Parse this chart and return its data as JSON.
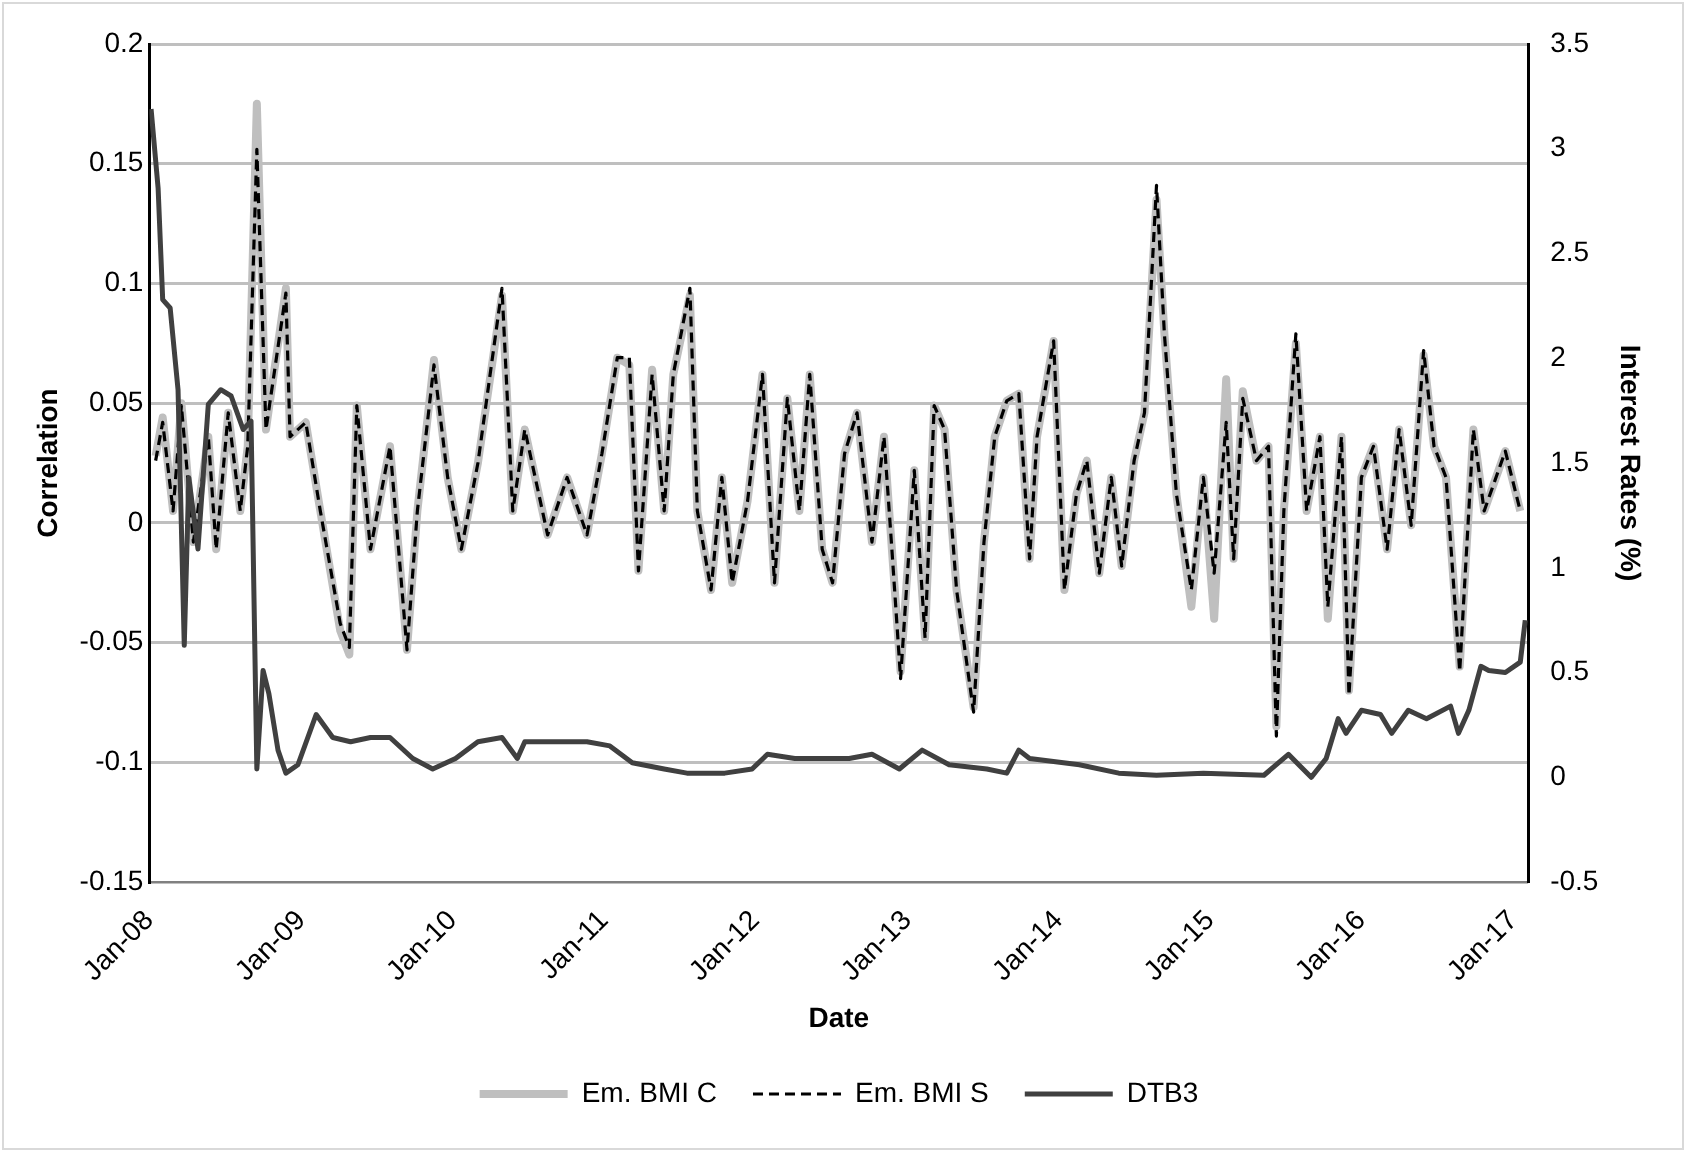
{
  "chart_data": {
    "type": "line",
    "xlabel": "Date",
    "ylabel": "Correlation",
    "y2label": "Interest Rates (%)",
    "xlim": [
      "2008-01-01",
      "2017-02-06"
    ],
    "xticks": [
      {
        "value": "2008-01",
        "label": "Jan-08"
      },
      {
        "value": "2009-01",
        "label": "Jan-09"
      },
      {
        "value": "2010-01",
        "label": "Jan-10"
      },
      {
        "value": "2011-01",
        "label": "Jan-11"
      },
      {
        "value": "2012-01",
        "label": "Jan-12"
      },
      {
        "value": "2013-01",
        "label": "Jan-13"
      },
      {
        "value": "2014-01",
        "label": "Jan-14"
      },
      {
        "value": "2015-01",
        "label": "Jan-15"
      },
      {
        "value": "2016-01",
        "label": "Jan-16"
      },
      {
        "value": "2017-01",
        "label": "Jan-17"
      }
    ],
    "ylim": [
      -0.15,
      0.2
    ],
    "yticks": [
      -0.15,
      -0.1,
      -0.05,
      0,
      0.05,
      0.1,
      0.15,
      0.2
    ],
    "y2lim": [
      -0.5,
      3.5
    ],
    "y2ticks": [
      -0.5,
      0,
      0.5,
      1,
      1.5,
      2,
      2.5,
      3,
      3.5
    ],
    "grid": "y",
    "legend": "bottom",
    "marker": "none",
    "series": [
      {
        "name": "Em. BMI C",
        "color": "#bfbfbf",
        "line_style": "solid",
        "x": [
          "2008-01-16",
          "2008-02-02",
          "2008-02-27",
          "2008-03-18",
          "2008-04-16",
          "2008-05-22",
          "2008-06-10",
          "2008-07-09",
          "2008-08-07",
          "2008-08-25",
          "2008-09-16",
          "2008-10-08",
          "2008-11-25",
          "2008-12-05",
          "2009-01-12",
          "2009-02-16",
          "2009-04-05",
          "2009-04-27",
          "2009-05-15",
          "2009-06-17",
          "2009-08-03",
          "2009-09-13",
          "2009-10-08",
          "2009-11-17",
          "2009-12-20",
          "2010-01-22",
          "2010-03-03",
          "2010-04-30",
          "2010-05-26",
          "2010-06-24",
          "2010-08-18",
          "2010-10-04",
          "2010-11-21",
          "2010-12-27",
          "2011-02-02",
          "2011-03-03",
          "2011-03-25",
          "2011-04-27",
          "2011-05-26",
          "2011-06-17",
          "2011-07-27",
          "2011-08-14",
          "2011-09-16",
          "2011-10-12",
          "2011-11-06",
          "2011-12-13",
          "2012-01-18",
          "2012-02-16",
          "2012-03-18",
          "2012-04-16",
          "2012-05-11",
          "2012-06-10",
          "2012-07-05",
          "2012-08-03",
          "2012-09-02",
          "2012-10-08",
          "2012-11-06",
          "2012-11-25",
          "2012-12-16",
          "2013-01-18",
          "2013-02-13",
          "2013-03-07",
          "2013-04-01",
          "2013-04-30",
          "2013-06-10",
          "2013-07-05",
          "2013-07-31",
          "2013-08-29",
          "2013-09-27",
          "2013-10-23",
          "2013-11-10",
          "2013-12-20",
          "2014-01-15",
          "2014-02-13",
          "2014-03-10",
          "2014-04-09",
          "2014-05-08",
          "2014-06-02",
          "2014-07-02",
          "2014-07-27",
          "2014-08-25",
          "2014-09-13",
          "2014-10-12",
          "2014-11-17",
          "2014-12-16",
          "2015-01-11",
          "2015-02-09",
          "2015-02-27",
          "2015-03-21",
          "2015-04-23",
          "2015-05-22",
          "2015-06-10",
          "2015-06-28",
          "2015-07-27",
          "2015-08-22",
          "2015-09-23",
          "2015-10-12",
          "2015-11-14",
          "2015-12-02",
          "2016-01-01",
          "2016-01-30",
          "2016-03-03",
          "2016-04-01",
          "2016-04-30",
          "2016-05-30",
          "2016-06-24",
          "2016-07-23",
          "2016-08-25",
          "2016-09-27",
          "2016-10-23",
          "2016-12-13",
          "2017-01-18"
        ],
        "values": [
          0.028,
          0.044,
          0.005,
          0.05,
          -0.008,
          0.036,
          -0.011,
          0.046,
          0.005,
          0.032,
          0.175,
          0.039,
          0.098,
          0.036,
          0.042,
          0.005,
          -0.045,
          -0.055,
          0.049,
          -0.011,
          0.032,
          -0.053,
          0.005,
          0.068,
          0.019,
          -0.011,
          0.025,
          0.095,
          0.005,
          0.039,
          -0.005,
          0.019,
          -0.005,
          0.029,
          0.069,
          0.066,
          -0.02,
          0.064,
          0.005,
          0.062,
          0.095,
          0.005,
          -0.028,
          0.019,
          -0.025,
          0.009,
          0.062,
          -0.025,
          0.052,
          0.005,
          0.062,
          -0.011,
          -0.025,
          0.029,
          0.046,
          -0.008,
          0.036,
          -0.011,
          -0.062,
          0.022,
          -0.048,
          0.049,
          0.039,
          -0.028,
          -0.077,
          -0.008,
          0.036,
          0.051,
          0.054,
          -0.015,
          0.036,
          0.076,
          -0.028,
          0.012,
          0.026,
          -0.021,
          0.019,
          -0.018,
          0.026,
          0.046,
          0.135,
          0.079,
          0.012,
          -0.035,
          0.019,
          -0.04,
          0.06,
          -0.015,
          0.055,
          0.026,
          0.032,
          -0.085,
          0.005,
          0.075,
          0.005,
          0.036,
          -0.04,
          0.036,
          -0.07,
          0.019,
          0.032,
          -0.011,
          0.039,
          -0.001,
          0.07,
          0.032,
          0.019,
          -0.06,
          0.039,
          0.005,
          0.03,
          0.005
        ]
      },
      {
        "name": "Em. BMI S",
        "color": "#000000",
        "line_style": "dashed",
        "x": [
          "2008-01-16",
          "2008-02-02",
          "2008-02-27",
          "2008-03-18",
          "2008-04-16",
          "2008-05-22",
          "2008-06-10",
          "2008-07-09",
          "2008-08-07",
          "2008-08-25",
          "2008-09-16",
          "2008-10-08",
          "2008-11-25",
          "2008-12-05",
          "2009-01-12",
          "2009-02-16",
          "2009-04-05",
          "2009-04-27",
          "2009-05-15",
          "2009-06-17",
          "2009-08-03",
          "2009-09-13",
          "2009-10-08",
          "2009-11-17",
          "2009-12-20",
          "2010-01-22",
          "2010-03-03",
          "2010-04-30",
          "2010-05-26",
          "2010-06-24",
          "2010-08-18",
          "2010-10-04",
          "2010-11-21",
          "2010-12-27",
          "2011-02-02",
          "2011-03-03",
          "2011-03-25",
          "2011-04-27",
          "2011-05-26",
          "2011-06-17",
          "2011-07-27",
          "2011-08-14",
          "2011-09-16",
          "2011-10-12",
          "2011-11-06",
          "2011-12-13",
          "2012-01-18",
          "2012-02-16",
          "2012-03-18",
          "2012-04-16",
          "2012-05-11",
          "2012-06-10",
          "2012-07-05",
          "2012-08-03",
          "2012-09-02",
          "2012-10-08",
          "2012-11-06",
          "2012-11-25",
          "2012-12-16",
          "2013-01-18",
          "2013-02-13",
          "2013-03-07",
          "2013-04-01",
          "2013-04-30",
          "2013-06-10",
          "2013-07-05",
          "2013-07-31",
          "2013-08-29",
          "2013-09-27",
          "2013-10-23",
          "2013-11-10",
          "2013-12-20",
          "2014-01-15",
          "2014-02-13",
          "2014-03-10",
          "2014-04-09",
          "2014-05-08",
          "2014-06-02",
          "2014-07-02",
          "2014-07-27",
          "2014-08-25",
          "2014-09-13",
          "2014-10-12",
          "2014-11-17",
          "2014-12-16",
          "2015-01-11",
          "2015-02-09",
          "2015-02-27",
          "2015-03-21",
          "2015-04-23",
          "2015-05-22",
          "2015-06-10",
          "2015-06-28",
          "2015-07-27",
          "2015-08-22",
          "2015-09-23",
          "2015-10-12",
          "2015-11-14",
          "2015-12-02",
          "2016-01-01",
          "2016-01-30",
          "2016-03-03",
          "2016-04-01",
          "2016-04-30",
          "2016-05-30",
          "2016-06-24",
          "2016-07-23",
          "2016-08-25",
          "2016-09-27",
          "2016-10-23",
          "2016-12-13",
          "2017-01-18"
        ],
        "values": [
          0.026,
          0.042,
          0.005,
          0.049,
          -0.008,
          0.036,
          -0.011,
          0.046,
          0.005,
          0.032,
          0.156,
          0.039,
          0.096,
          0.036,
          0.042,
          0.005,
          -0.042,
          -0.052,
          0.049,
          -0.011,
          0.032,
          -0.053,
          0.005,
          0.066,
          0.019,
          -0.011,
          0.025,
          0.098,
          0.005,
          0.039,
          -0.005,
          0.019,
          -0.005,
          0.029,
          0.069,
          0.069,
          -0.02,
          0.062,
          0.005,
          0.062,
          0.098,
          0.005,
          -0.028,
          0.019,
          -0.025,
          0.009,
          0.062,
          -0.025,
          0.052,
          0.005,
          0.062,
          -0.011,
          -0.025,
          0.029,
          0.046,
          -0.008,
          0.036,
          -0.011,
          -0.065,
          0.022,
          -0.048,
          0.049,
          0.039,
          -0.028,
          -0.079,
          -0.008,
          0.036,
          0.051,
          0.054,
          -0.015,
          0.036,
          0.076,
          -0.028,
          0.012,
          0.026,
          -0.021,
          0.019,
          -0.018,
          0.026,
          0.046,
          0.141,
          0.079,
          0.012,
          -0.028,
          0.019,
          -0.021,
          0.042,
          -0.015,
          0.052,
          0.026,
          0.032,
          -0.089,
          0.005,
          0.079,
          0.005,
          0.036,
          -0.035,
          0.036,
          -0.072,
          0.019,
          0.032,
          -0.011,
          0.039,
          -0.001,
          0.072,
          0.032,
          0.019,
          -0.062,
          0.039,
          0.005,
          0.03,
          0.005
        ]
      },
      {
        "name": "DTB3",
        "color": "#404040",
        "line_style": "solid",
        "axis": "y2",
        "x": [
          "2008-01-05",
          "2008-01-22",
          "2008-02-02",
          "2008-02-20",
          "2008-03-10",
          "2008-03-25",
          "2008-04-05",
          "2008-04-27",
          "2008-05-22",
          "2008-06-21",
          "2008-07-16",
          "2008-08-14",
          "2008-09-02",
          "2008-09-16",
          "2008-10-01",
          "2008-10-15",
          "2008-11-06",
          "2008-11-25",
          "2008-12-24",
          "2009-02-06",
          "2009-03-18",
          "2009-04-30",
          "2009-06-17",
          "2009-08-03",
          "2009-09-27",
          "2009-11-14",
          "2010-01-08",
          "2010-03-03",
          "2010-04-30",
          "2010-06-06",
          "2010-06-24",
          "2010-09-05",
          "2010-11-21",
          "2011-01-15",
          "2011-03-10",
          "2011-05-26",
          "2011-07-20",
          "2011-10-19",
          "2011-12-24",
          "2012-01-30",
          "2012-04-05",
          "2012-05-30",
          "2012-08-14",
          "2012-10-08",
          "2012-12-13",
          "2013-02-06",
          "2013-04-12",
          "2013-07-12",
          "2013-08-29",
          "2013-09-27",
          "2013-10-23",
          "2014-02-20",
          "2014-05-26",
          "2014-08-25",
          "2014-12-16",
          "2015-05-11",
          "2015-07-09",
          "2015-09-02",
          "2015-10-08",
          "2015-11-06",
          "2015-11-25",
          "2016-01-01",
          "2016-02-16",
          "2016-03-14",
          "2016-04-23",
          "2016-06-06",
          "2016-08-03",
          "2016-08-22",
          "2016-09-16",
          "2016-10-15",
          "2016-11-03",
          "2016-12-13",
          "2017-01-18",
          "2017-01-30"
        ],
        "values": [
          3.19,
          2.81,
          2.28,
          2.24,
          1.85,
          0.63,
          1.43,
          1.09,
          1.78,
          1.85,
          1.82,
          1.66,
          1.7,
          0.04,
          0.51,
          0.4,
          0.13,
          0.02,
          0.06,
          0.3,
          0.19,
          0.17,
          0.19,
          0.19,
          0.09,
          0.04,
          0.09,
          0.17,
          0.19,
          0.09,
          0.17,
          0.17,
          0.17,
          0.15,
          0.07,
          0.04,
          0.02,
          0.02,
          0.04,
          0.11,
          0.09,
          0.09,
          0.09,
          0.11,
          0.04,
          0.13,
          0.06,
          0.04,
          0.02,
          0.13,
          0.09,
          0.06,
          0.02,
          0.01,
          0.02,
          0.01,
          0.11,
          0,
          0.09,
          0.28,
          0.21,
          0.32,
          0.3,
          0.21,
          0.32,
          0.28,
          0.34,
          0.21,
          0.32,
          0.53,
          0.51,
          0.5,
          0.55,
          0.75
        ]
      }
    ]
  }
}
